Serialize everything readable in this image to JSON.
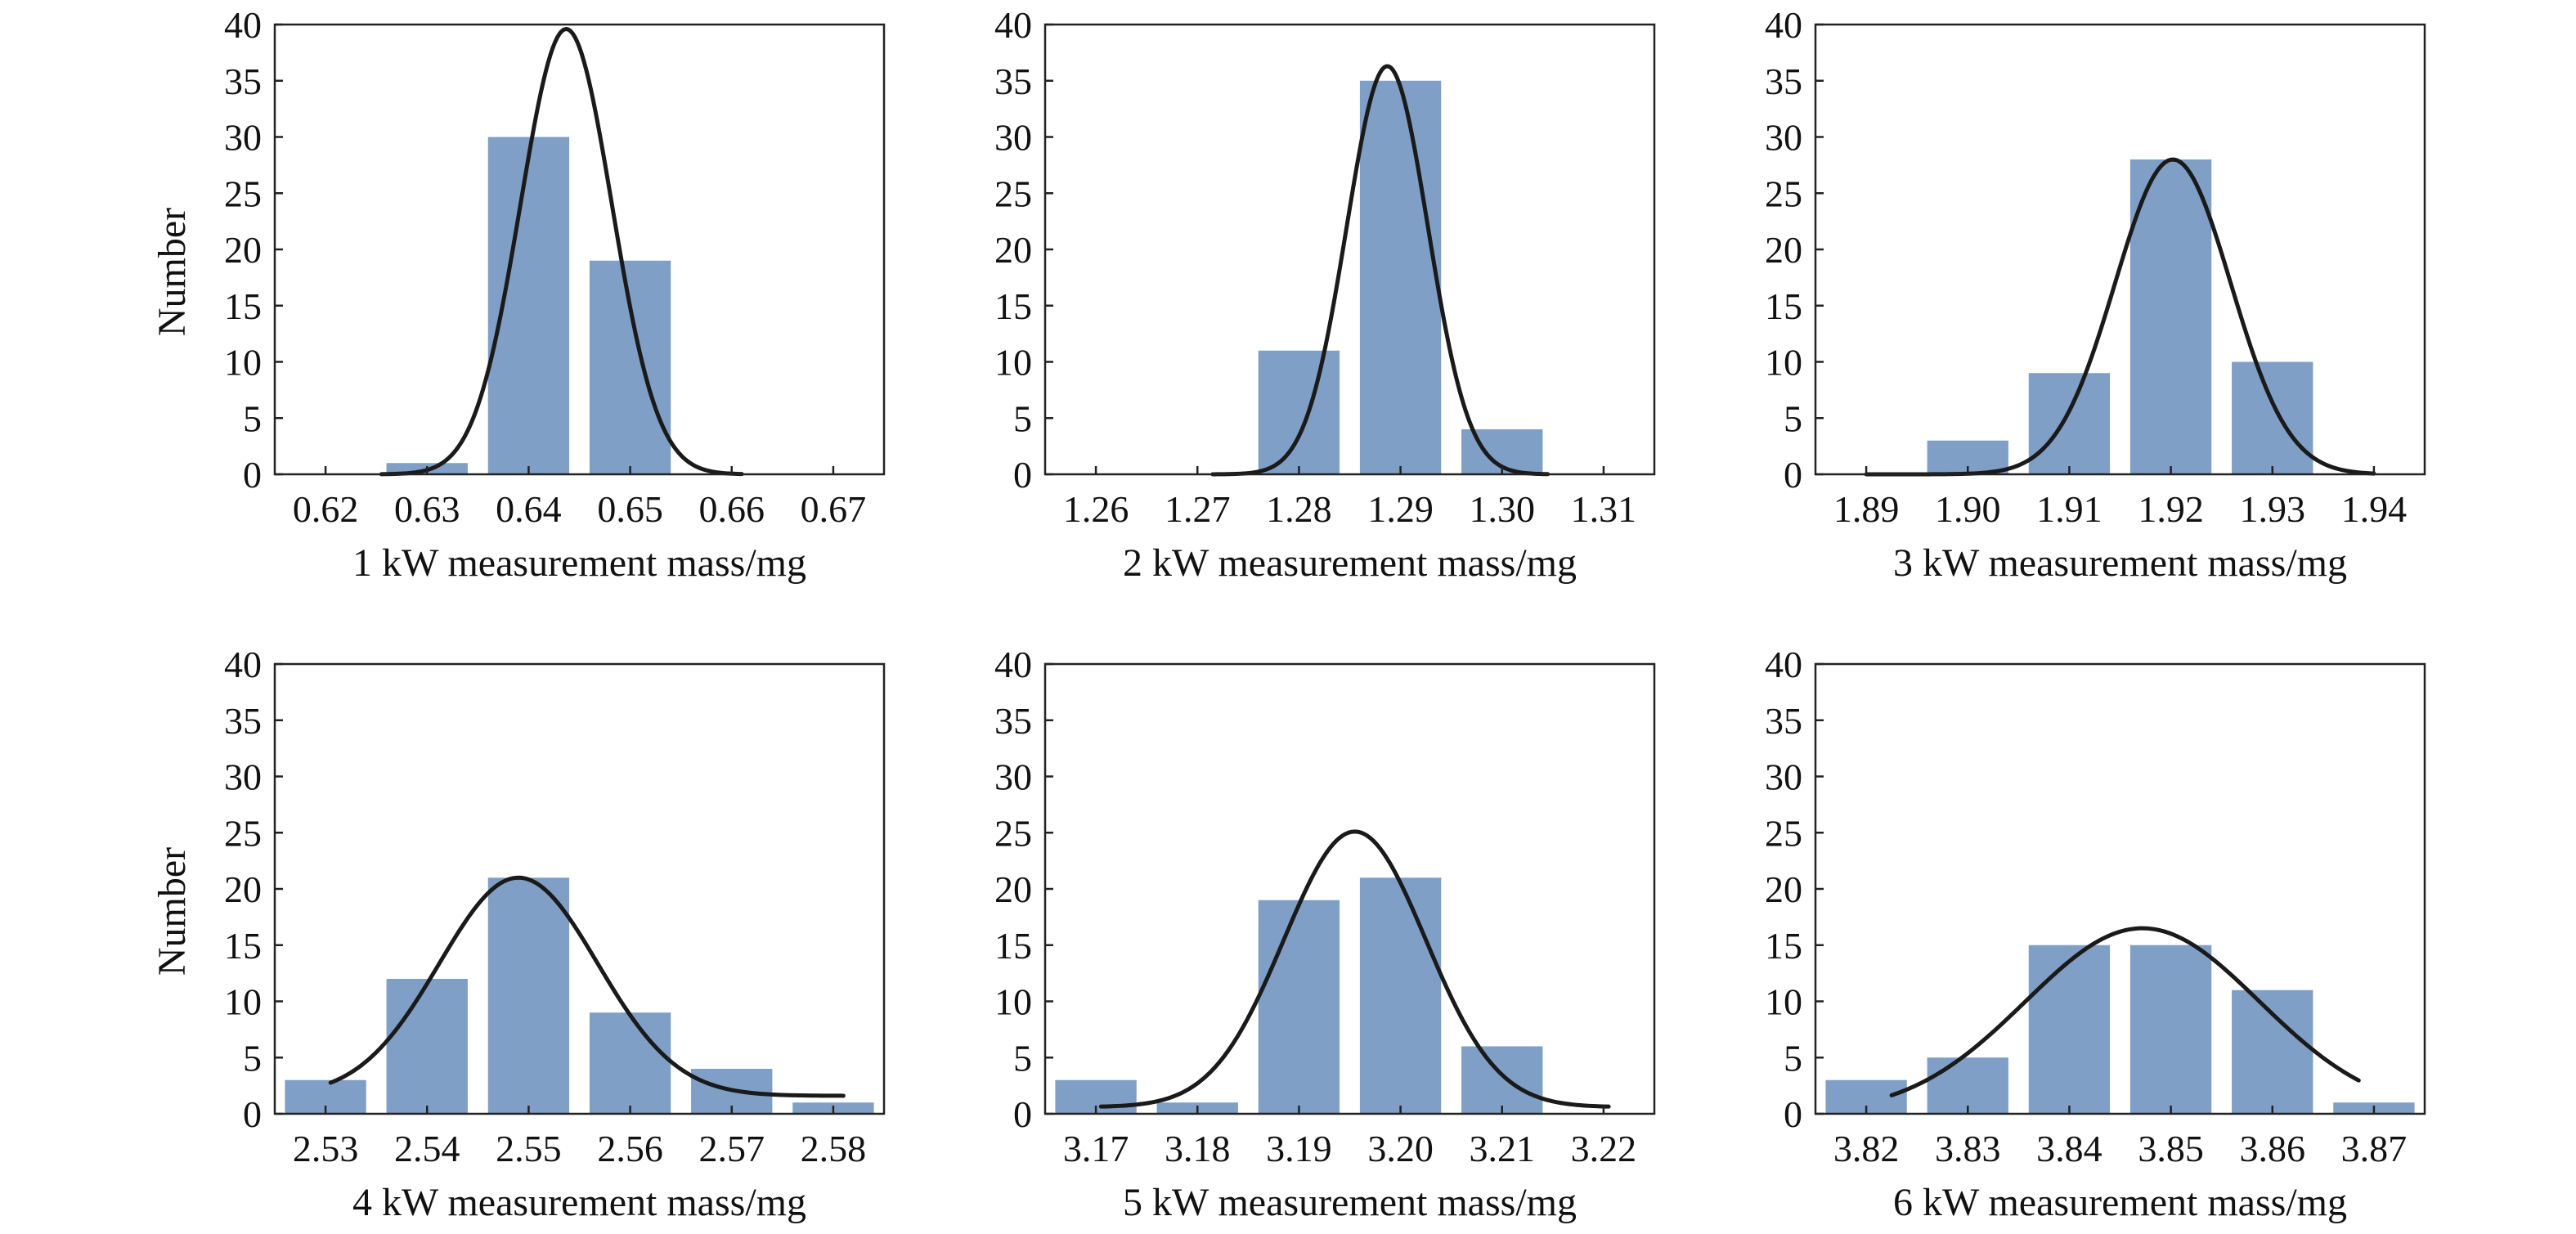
{
  "colors": {
    "bar": "#7f9fc6",
    "fit": "#1a1a1a",
    "axis": "#222222"
  },
  "chart_data": [
    {
      "type": "bar",
      "overlay": "normal-fit-curve",
      "xlabel": "1 kW measurement mass/mg",
      "ylabel": "Number",
      "xlim": [
        0.615,
        0.675
      ],
      "ylim": [
        0,
        40
      ],
      "xticks": [
        "0.62",
        "0.63",
        "0.64",
        "0.65",
        "0.66",
        "0.67"
      ],
      "yticks": [
        "0",
        "5",
        "10",
        "15",
        "20",
        "25",
        "30",
        "35",
        "40"
      ],
      "categories": [
        "0.63",
        "0.64",
        "0.65"
      ],
      "bar_centers": [
        0.63,
        0.64,
        0.65
      ],
      "bar_width": 0.008,
      "values": [
        1,
        30,
        19
      ],
      "fit": {
        "mean": 0.6437,
        "sd": 0.0045,
        "peak": 39.6,
        "x_from": 0.6255,
        "x_to": 0.661
      }
    },
    {
      "type": "bar",
      "overlay": "normal-fit-curve",
      "xlabel": "2 kW measurement mass/mg",
      "ylabel": "",
      "xlim": [
        1.255,
        1.315
      ],
      "ylim": [
        0,
        40
      ],
      "xticks": [
        "1.26",
        "1.27",
        "1.28",
        "1.29",
        "1.30",
        "1.31"
      ],
      "yticks": [
        "0",
        "5",
        "10",
        "15",
        "20",
        "25",
        "30",
        "35",
        "40"
      ],
      "categories": [
        "1.28",
        "1.29",
        "1.30"
      ],
      "bar_centers": [
        1.28,
        1.29,
        1.3
      ],
      "bar_width": 0.008,
      "values": [
        11,
        35,
        4
      ],
      "fit": {
        "mean": 1.2887,
        "sd": 0.004,
        "peak": 36.3,
        "x_from": 1.2715,
        "x_to": 1.3045
      }
    },
    {
      "type": "bar",
      "overlay": "normal-fit-curve",
      "xlabel": "3 kW measurement mass/mg",
      "ylabel": "",
      "xlim": [
        1.885,
        1.945
      ],
      "ylim": [
        0,
        40
      ],
      "xticks": [
        "1.89",
        "1.90",
        "1.91",
        "1.92",
        "1.93",
        "1.94"
      ],
      "yticks": [
        "0",
        "5",
        "10",
        "15",
        "20",
        "25",
        "30",
        "35",
        "40"
      ],
      "categories": [
        "1.90",
        "1.91",
        "1.92",
        "1.93"
      ],
      "bar_centers": [
        1.9,
        1.91,
        1.92,
        1.93
      ],
      "bar_width": 0.008,
      "values": [
        3,
        9,
        28,
        10
      ],
      "fit": {
        "mean": 1.9202,
        "sd": 0.0057,
        "peak": 28,
        "x_from": 1.89,
        "x_to": 1.94
      }
    },
    {
      "type": "bar",
      "overlay": "normal-fit-curve",
      "xlabel": "4 kW measurement mass/mg",
      "ylabel": "Number",
      "xlim": [
        2.525,
        2.585
      ],
      "ylim": [
        0,
        40
      ],
      "xticks": [
        "2.53",
        "2.54",
        "2.55",
        "2.56",
        "2.57",
        "2.58"
      ],
      "yticks": [
        "0",
        "5",
        "10",
        "15",
        "20",
        "25",
        "30",
        "35",
        "40"
      ],
      "categories": [
        "2.53",
        "2.54",
        "2.55",
        "2.56",
        "2.57",
        "2.58"
      ],
      "bar_centers": [
        2.53,
        2.54,
        2.55,
        2.56,
        2.57,
        2.58
      ],
      "bar_width": 0.008,
      "values": [
        3,
        12,
        21,
        9,
        4,
        1
      ],
      "fit": {
        "mean": 2.549,
        "sd": 0.0078,
        "peak": 19.4,
        "base": 1.6,
        "x_from": 2.5305,
        "x_to": 2.581
      }
    },
    {
      "type": "bar",
      "overlay": "normal-fit-curve",
      "xlabel": "5 kW measurement mass/mg",
      "ylabel": "",
      "xlim": [
        3.165,
        3.225
      ],
      "ylim": [
        0,
        40
      ],
      "xticks": [
        "3.17",
        "3.18",
        "3.19",
        "3.20",
        "3.21",
        "3.22"
      ],
      "yticks": [
        "0",
        "5",
        "10",
        "15",
        "20",
        "25",
        "30",
        "35",
        "40"
      ],
      "categories": [
        "3.17",
        "3.18",
        "3.19",
        "3.20",
        "3.21"
      ],
      "bar_centers": [
        3.17,
        3.18,
        3.19,
        3.2,
        3.21
      ],
      "bar_width": 0.008,
      "values": [
        3,
        1,
        19,
        21,
        6
      ],
      "fit": {
        "mean": 3.1955,
        "sd": 0.007,
        "peak": 24.5,
        "base": 0.6,
        "x_from": 3.1705,
        "x_to": 3.2205
      }
    },
    {
      "type": "bar",
      "overlay": "normal-fit-curve",
      "xlabel": "6 kW measurement mass/mg",
      "ylabel": "",
      "xlim": [
        3.815,
        3.875
      ],
      "ylim": [
        0,
        40
      ],
      "xticks": [
        "3.82",
        "3.83",
        "3.84",
        "3.85",
        "3.86",
        "3.87"
      ],
      "yticks": [
        "0",
        "5",
        "10",
        "15",
        "20",
        "25",
        "30",
        "35",
        "40"
      ],
      "categories": [
        "3.82",
        "3.83",
        "3.84",
        "3.85",
        "3.86",
        "3.87"
      ],
      "bar_centers": [
        3.82,
        3.83,
        3.84,
        3.85,
        3.86,
        3.87
      ],
      "bar_width": 0.008,
      "values": [
        3,
        5,
        15,
        15,
        11,
        1
      ],
      "fit": {
        "mean": 3.8472,
        "sd": 0.0115,
        "peak": 16.5,
        "x_from": 3.8225,
        "x_to": 3.8685
      }
    }
  ]
}
